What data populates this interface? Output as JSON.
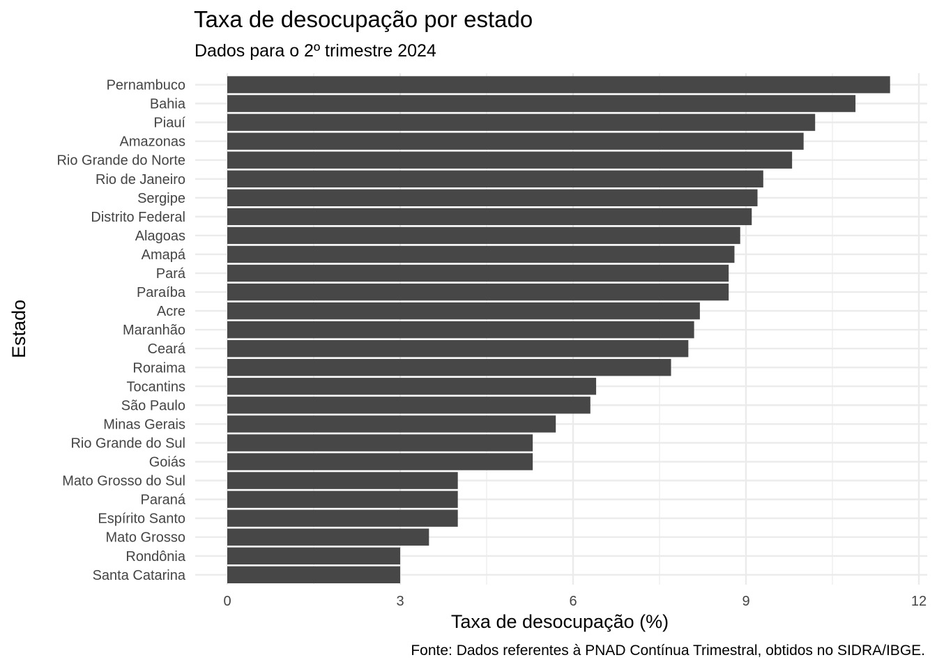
{
  "chart_data": {
    "type": "bar",
    "orientation": "horizontal",
    "title": "Taxa de desocupação por estado",
    "subtitle": "Dados para o 2º trimestre 2024",
    "xlabel": "Taxa de desocupação (%)",
    "ylabel": "Estado",
    "caption": "Fonte: Dados referentes à PNAD Contínua Trimestral, obtidos no SIDRA/IBGE.",
    "xlim": [
      0,
      12
    ],
    "x_ticks": [
      "0",
      "3",
      "6",
      "9",
      "12"
    ],
    "grid": true,
    "bar_color": "#474747",
    "grid_color": "#ebebeb",
    "categories": [
      "Pernambuco",
      "Bahia",
      "Piauí",
      "Amazonas",
      "Rio Grande do Norte",
      "Rio de Janeiro",
      "Sergipe",
      "Distrito Federal",
      "Alagoas",
      "Amapá",
      "Pará",
      "Paraíba",
      "Acre",
      "Maranhão",
      "Ceará",
      "Roraima",
      "Tocantins",
      "São Paulo",
      "Minas Gerais",
      "Rio Grande do Sul",
      "Goiás",
      "Mato Grosso do Sul",
      "Paraná",
      "Espírito Santo",
      "Mato Grosso",
      "Rondônia",
      "Santa Catarina"
    ],
    "values": [
      11.5,
      10.9,
      10.2,
      10.0,
      9.8,
      9.3,
      9.2,
      9.1,
      8.9,
      8.8,
      8.7,
      8.7,
      8.2,
      8.1,
      8.0,
      7.7,
      6.4,
      6.3,
      5.7,
      5.3,
      5.3,
      4.0,
      4.0,
      4.0,
      3.5,
      3.0,
      3.0
    ]
  }
}
